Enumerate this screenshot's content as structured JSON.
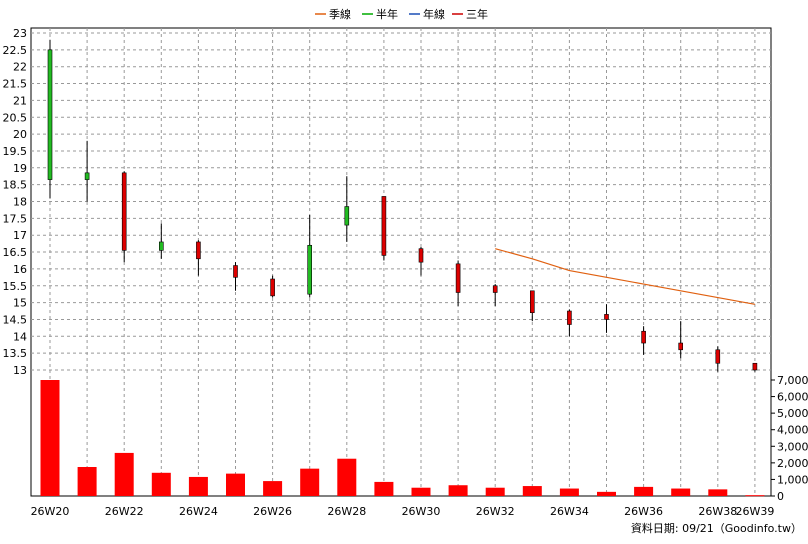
{
  "chart_data": {
    "type": "candlestick",
    "legend_placement": "top-center",
    "legend": [
      {
        "name": "季線",
        "color": "#e06010"
      },
      {
        "name": "半年",
        "color": "#00aa00"
      },
      {
        "name": "年線",
        "color": "#1a4fb5"
      },
      {
        "name": "三年",
        "color": "#cc0000"
      }
    ],
    "grid": true,
    "price_axis": {
      "range": [
        12.75,
        23.15
      ],
      "ticks": [
        "13",
        "13.5",
        "14",
        "14.5",
        "15",
        "15.5",
        "16",
        "16.5",
        "17",
        "17.5",
        "18",
        "18.5",
        "19",
        "19.5",
        "20",
        "20.5",
        "21",
        "21.5",
        "22",
        "22.5",
        "23"
      ]
    },
    "volume_axis": {
      "range": [
        0,
        7000
      ],
      "ticks": [
        "0",
        "1,000",
        "2,000",
        "3,000",
        "4,000",
        "5,000",
        "6,000",
        "7,000"
      ]
    },
    "x_ticks": [
      "26W20",
      "26W22",
      "26W24",
      "26W26",
      "26W28",
      "26W30",
      "26W32",
      "26W34",
      "26W36",
      "26W38",
      "26W39"
    ],
    "weeks": [
      "26W20",
      "26W21",
      "26W22",
      "26W23",
      "26W24",
      "26W25",
      "26W26",
      "26W27",
      "26W28",
      "26W29",
      "26W30",
      "26W31",
      "26W32",
      "26W33",
      "26W34",
      "26W35",
      "26W36",
      "26W37",
      "26W38",
      "26W39"
    ],
    "candles": [
      {
        "o": 18.65,
        "h": 22.8,
        "l": 18.1,
        "c": 22.5
      },
      {
        "o": 18.65,
        "h": 19.8,
        "l": 18.0,
        "c": 18.85
      },
      {
        "o": 18.85,
        "h": 18.9,
        "l": 16.2,
        "c": 16.55
      },
      {
        "o": 16.55,
        "h": 17.35,
        "l": 16.3,
        "c": 16.8
      },
      {
        "o": 16.8,
        "h": 16.85,
        "l": 15.8,
        "c": 16.3
      },
      {
        "o": 16.1,
        "h": 16.2,
        "l": 15.35,
        "c": 15.75
      },
      {
        "o": 15.7,
        "h": 15.8,
        "l": 15.15,
        "c": 15.2
      },
      {
        "o": 15.25,
        "h": 17.6,
        "l": 15.15,
        "c": 16.7
      },
      {
        "o": 17.3,
        "h": 18.75,
        "l": 16.8,
        "c": 17.85
      },
      {
        "o": 18.15,
        "h": 18.15,
        "l": 16.25,
        "c": 16.4
      },
      {
        "o": 16.6,
        "h": 16.65,
        "l": 15.8,
        "c": 16.2
      },
      {
        "o": 16.15,
        "h": 16.25,
        "l": 14.9,
        "c": 15.3
      },
      {
        "o": 15.5,
        "h": 15.55,
        "l": 14.9,
        "c": 15.3
      },
      {
        "o": 15.35,
        "h": 15.35,
        "l": 14.45,
        "c": 14.7
      },
      {
        "o": 14.75,
        "h": 14.8,
        "l": 14.0,
        "c": 14.35
      },
      {
        "o": 14.65,
        "h": 14.95,
        "l": 14.1,
        "c": 14.5
      },
      {
        "o": 14.15,
        "h": 14.3,
        "l": 13.45,
        "c": 13.8
      },
      {
        "o": 13.8,
        "h": 14.45,
        "l": 13.35,
        "c": 13.6
      },
      {
        "o": 13.6,
        "h": 13.7,
        "l": 12.95,
        "c": 13.2
      },
      {
        "o": 13.2,
        "h": 13.2,
        "l": 12.95,
        "c": 13.0
      }
    ],
    "volumes": [
      7000,
      1750,
      2600,
      1400,
      1150,
      1350,
      900,
      1650,
      2250,
      850,
      500,
      650,
      500,
      600,
      450,
      250,
      550,
      450,
      400,
      50
    ],
    "quarter_line": {
      "name": "季線",
      "start_index": 12,
      "values": [
        16.6,
        16.3,
        15.95,
        15.75,
        15.55,
        15.35,
        15.15,
        14.95
      ]
    }
  },
  "credit": "資料日期: 09/21（Goodinfo.tw）",
  "colors": {
    "up": "#22bb22",
    "down": "#dd0000",
    "volume": "#ff0000",
    "quarter_line": "#e06010",
    "grid": "#999999"
  }
}
